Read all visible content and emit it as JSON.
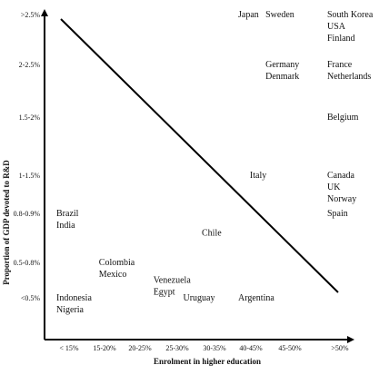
{
  "chart_data": {
    "type": "scatter",
    "x_categories": [
      "< 15%",
      "15-20%",
      "20-25%",
      "25-30%",
      "30-35%",
      "40-45%",
      "45-50%",
      ">50%"
    ],
    "y_categories": [
      "<0.5%",
      "0.5-0.8%",
      "0.8-0.9%",
      "1-1.5%",
      "1.5-2%",
      "2-2.5%",
      ">2.5%"
    ],
    "xlabel": "Enrolment in higher education",
    "ylabel": "Proportion of GDP devoted to R&D",
    "trend_line": {
      "from": {
        "x": 0,
        "y": 6
      },
      "to": {
        "x": 7,
        "y": 0
      }
    },
    "points": [
      {
        "labels": [
          "Japan"
        ],
        "x": 5,
        "y": 6
      },
      {
        "labels": [
          "Sweden"
        ],
        "x": 5.7,
        "y": 6
      },
      {
        "labels": [
          "South Korea",
          "USA",
          "Finland"
        ],
        "x": 7,
        "y": 6
      },
      {
        "labels": [
          "Germany",
          "Denmark"
        ],
        "x": 5.7,
        "y": 5
      },
      {
        "labels": [
          "France",
          "Netherlands"
        ],
        "x": 7,
        "y": 5
      },
      {
        "labels": [
          "Belgium"
        ],
        "x": 7,
        "y": 4
      },
      {
        "labels": [
          "Canada",
          "UK",
          "Norway"
        ],
        "x": 7,
        "y": 3
      },
      {
        "labels": [
          "Italy"
        ],
        "x": 5.3,
        "y": 3
      },
      {
        "labels": [
          "Brazil",
          "India"
        ],
        "x": 0,
        "y": 2
      },
      {
        "labels": [
          "Spain"
        ],
        "x": 7,
        "y": 2
      },
      {
        "labels": [
          "Chile"
        ],
        "x": 4,
        "y": 1.6
      },
      {
        "labels": [
          "Colombia",
          "Mexico"
        ],
        "x": 1.2,
        "y": 1
      },
      {
        "labels": [
          "Venezuela",
          "Egypt"
        ],
        "x": 2.7,
        "y": 0.5
      },
      {
        "labels": [
          "Indonesia",
          "Nigeria"
        ],
        "x": 0,
        "y": 0
      },
      {
        "labels": [
          "Uruguay"
        ],
        "x": 3.5,
        "y": 0
      },
      {
        "labels": [
          "Argentina"
        ],
        "x": 5,
        "y": 0
      }
    ]
  }
}
